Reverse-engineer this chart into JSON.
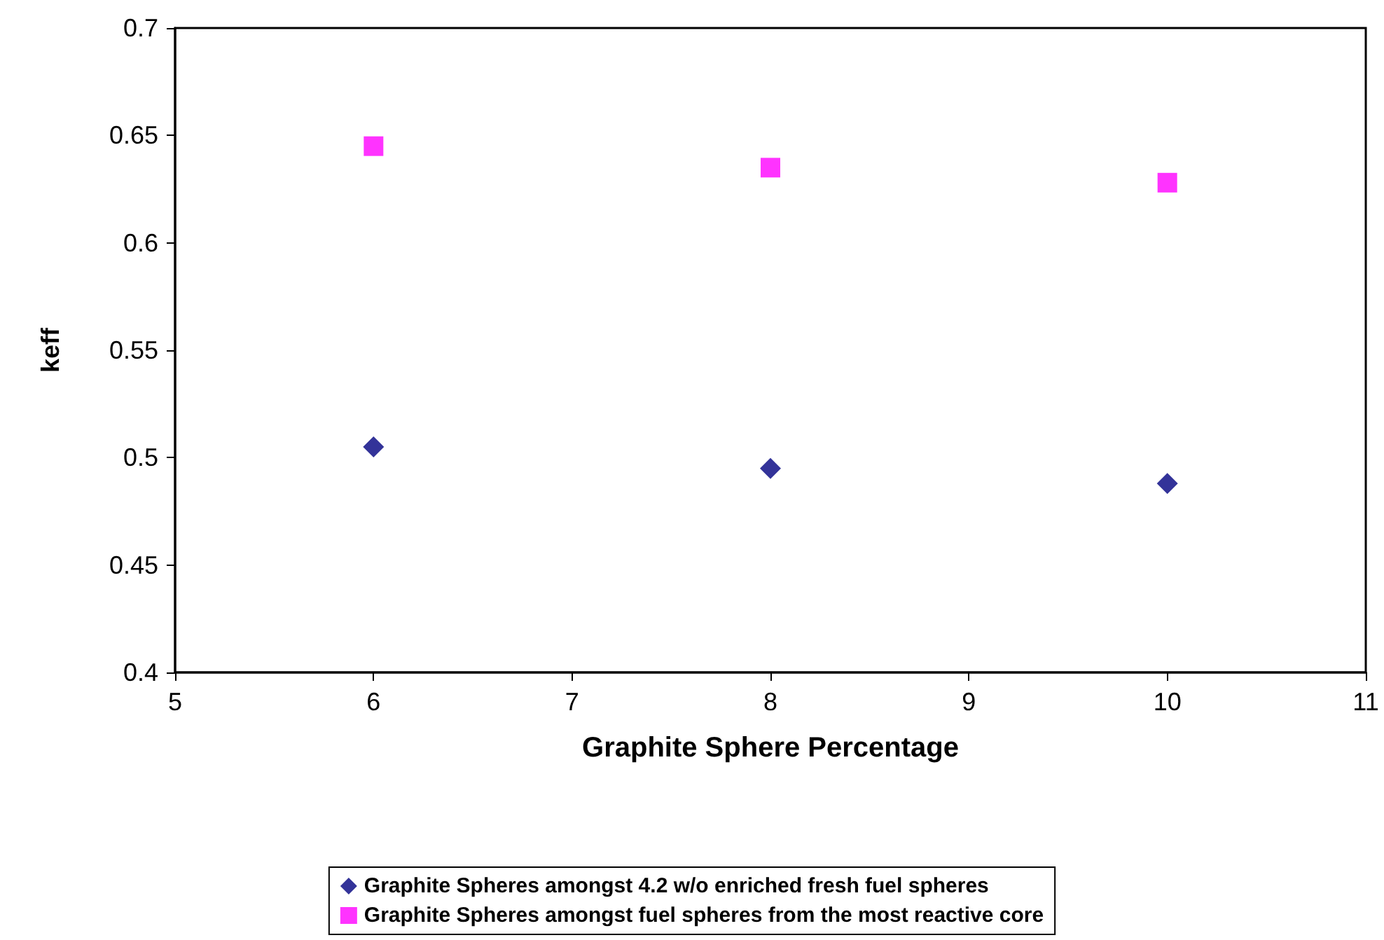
{
  "chart_data": {
    "type": "scatter",
    "xlabel": "Graphite Sphere Percentage",
    "ylabel": "keff",
    "xlim": [
      5,
      11
    ],
    "xticks": [
      5,
      6,
      7,
      8,
      9,
      10,
      11
    ],
    "ylim": [
      0.4,
      0.7
    ],
    "yticks": [
      0.4,
      0.45,
      0.5,
      0.55,
      0.6,
      0.65,
      0.7
    ],
    "grid": false,
    "legend": "bottom",
    "series": [
      {
        "name": "Graphite Spheres amongst 4.2 w/o enriched fresh fuel spheres",
        "color": "#000080",
        "marker": "diamond",
        "x": [
          6,
          8,
          10
        ],
        "values": [
          0.505,
          0.495,
          0.488
        ]
      },
      {
        "name": "Graphite Spheres amongst fuel spheres from the most reactive core",
        "color": "#ff00ff",
        "marker": "square",
        "x": [
          6,
          8,
          10
        ],
        "values": [
          0.645,
          0.635,
          0.628
        ]
      }
    ]
  }
}
